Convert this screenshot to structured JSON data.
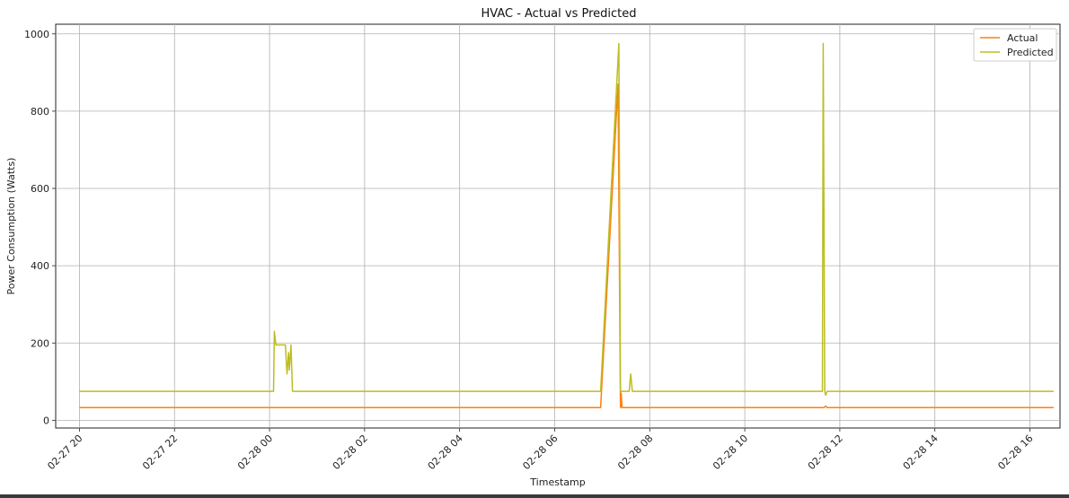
{
  "chart_data": {
    "type": "line",
    "title": "HVAC - Actual vs Predicted",
    "xlabel": "Timestamp",
    "ylabel": "Power Consumption (Watts)",
    "x_ticks": [
      "02-27 20",
      "02-27 22",
      "02-28 00",
      "02-28 02",
      "02-28 04",
      "02-28 06",
      "02-28 08",
      "02-28 10",
      "02-28 12",
      "02-28 14",
      "02-28 16"
    ],
    "y_ticks": [
      "0",
      "200",
      "400",
      "600",
      "800",
      "1000"
    ],
    "xlim": [
      "02-27 19:30",
      "02-28 16:38"
    ],
    "ylim": [
      -20,
      1025
    ],
    "grid": true,
    "legend_position": "top-right",
    "series": [
      {
        "name": "Actual",
        "color": "#ff7f0e",
        "points": [
          [
            "02-27 20:00",
            33
          ],
          [
            "02-27 22:00",
            33
          ],
          [
            "02-28 00:00",
            33
          ],
          [
            "02-28 02:00",
            33
          ],
          [
            "02-28 04:00",
            33
          ],
          [
            "02-28 06:00",
            33
          ],
          [
            "02-28 06:58",
            33
          ],
          [
            "02-28 07:20",
            870
          ],
          [
            "02-28 07:23",
            33
          ],
          [
            "02-28 07:24",
            70
          ],
          [
            "02-28 07:25",
            33
          ],
          [
            "02-28 09:00",
            33
          ],
          [
            "02-28 11:40",
            33
          ],
          [
            "02-28 11:42",
            37
          ],
          [
            "02-28 11:44",
            33
          ],
          [
            "02-28 14:00",
            33
          ],
          [
            "02-28 16:30",
            33
          ]
        ]
      },
      {
        "name": "Predicted",
        "color": "#bcbd22",
        "points": [
          [
            "02-27 20:00",
            75
          ],
          [
            "02-27 22:00",
            75
          ],
          [
            "02-28 00:05",
            75
          ],
          [
            "02-28 00:06",
            230
          ],
          [
            "02-28 00:08",
            195
          ],
          [
            "02-28 00:20",
            195
          ],
          [
            "02-28 00:22",
            120
          ],
          [
            "02-28 00:24",
            175
          ],
          [
            "02-28 00:25",
            130
          ],
          [
            "02-28 00:27",
            195
          ],
          [
            "02-28 00:29",
            75
          ],
          [
            "02-28 03:00",
            75
          ],
          [
            "02-28 06:58",
            75
          ],
          [
            "02-28 07:21",
            975
          ],
          [
            "02-28 07:23",
            75
          ],
          [
            "02-28 07:34",
            75
          ],
          [
            "02-28 07:36",
            120
          ],
          [
            "02-28 07:38",
            75
          ],
          [
            "02-28 09:00",
            75
          ],
          [
            "02-28 11:38",
            75
          ],
          [
            "02-28 11:39",
            975
          ],
          [
            "02-28 11:41",
            75
          ],
          [
            "02-28 11:42",
            65
          ],
          [
            "02-28 11:44",
            75
          ],
          [
            "02-28 14:00",
            75
          ],
          [
            "02-28 16:30",
            75
          ]
        ]
      }
    ]
  }
}
